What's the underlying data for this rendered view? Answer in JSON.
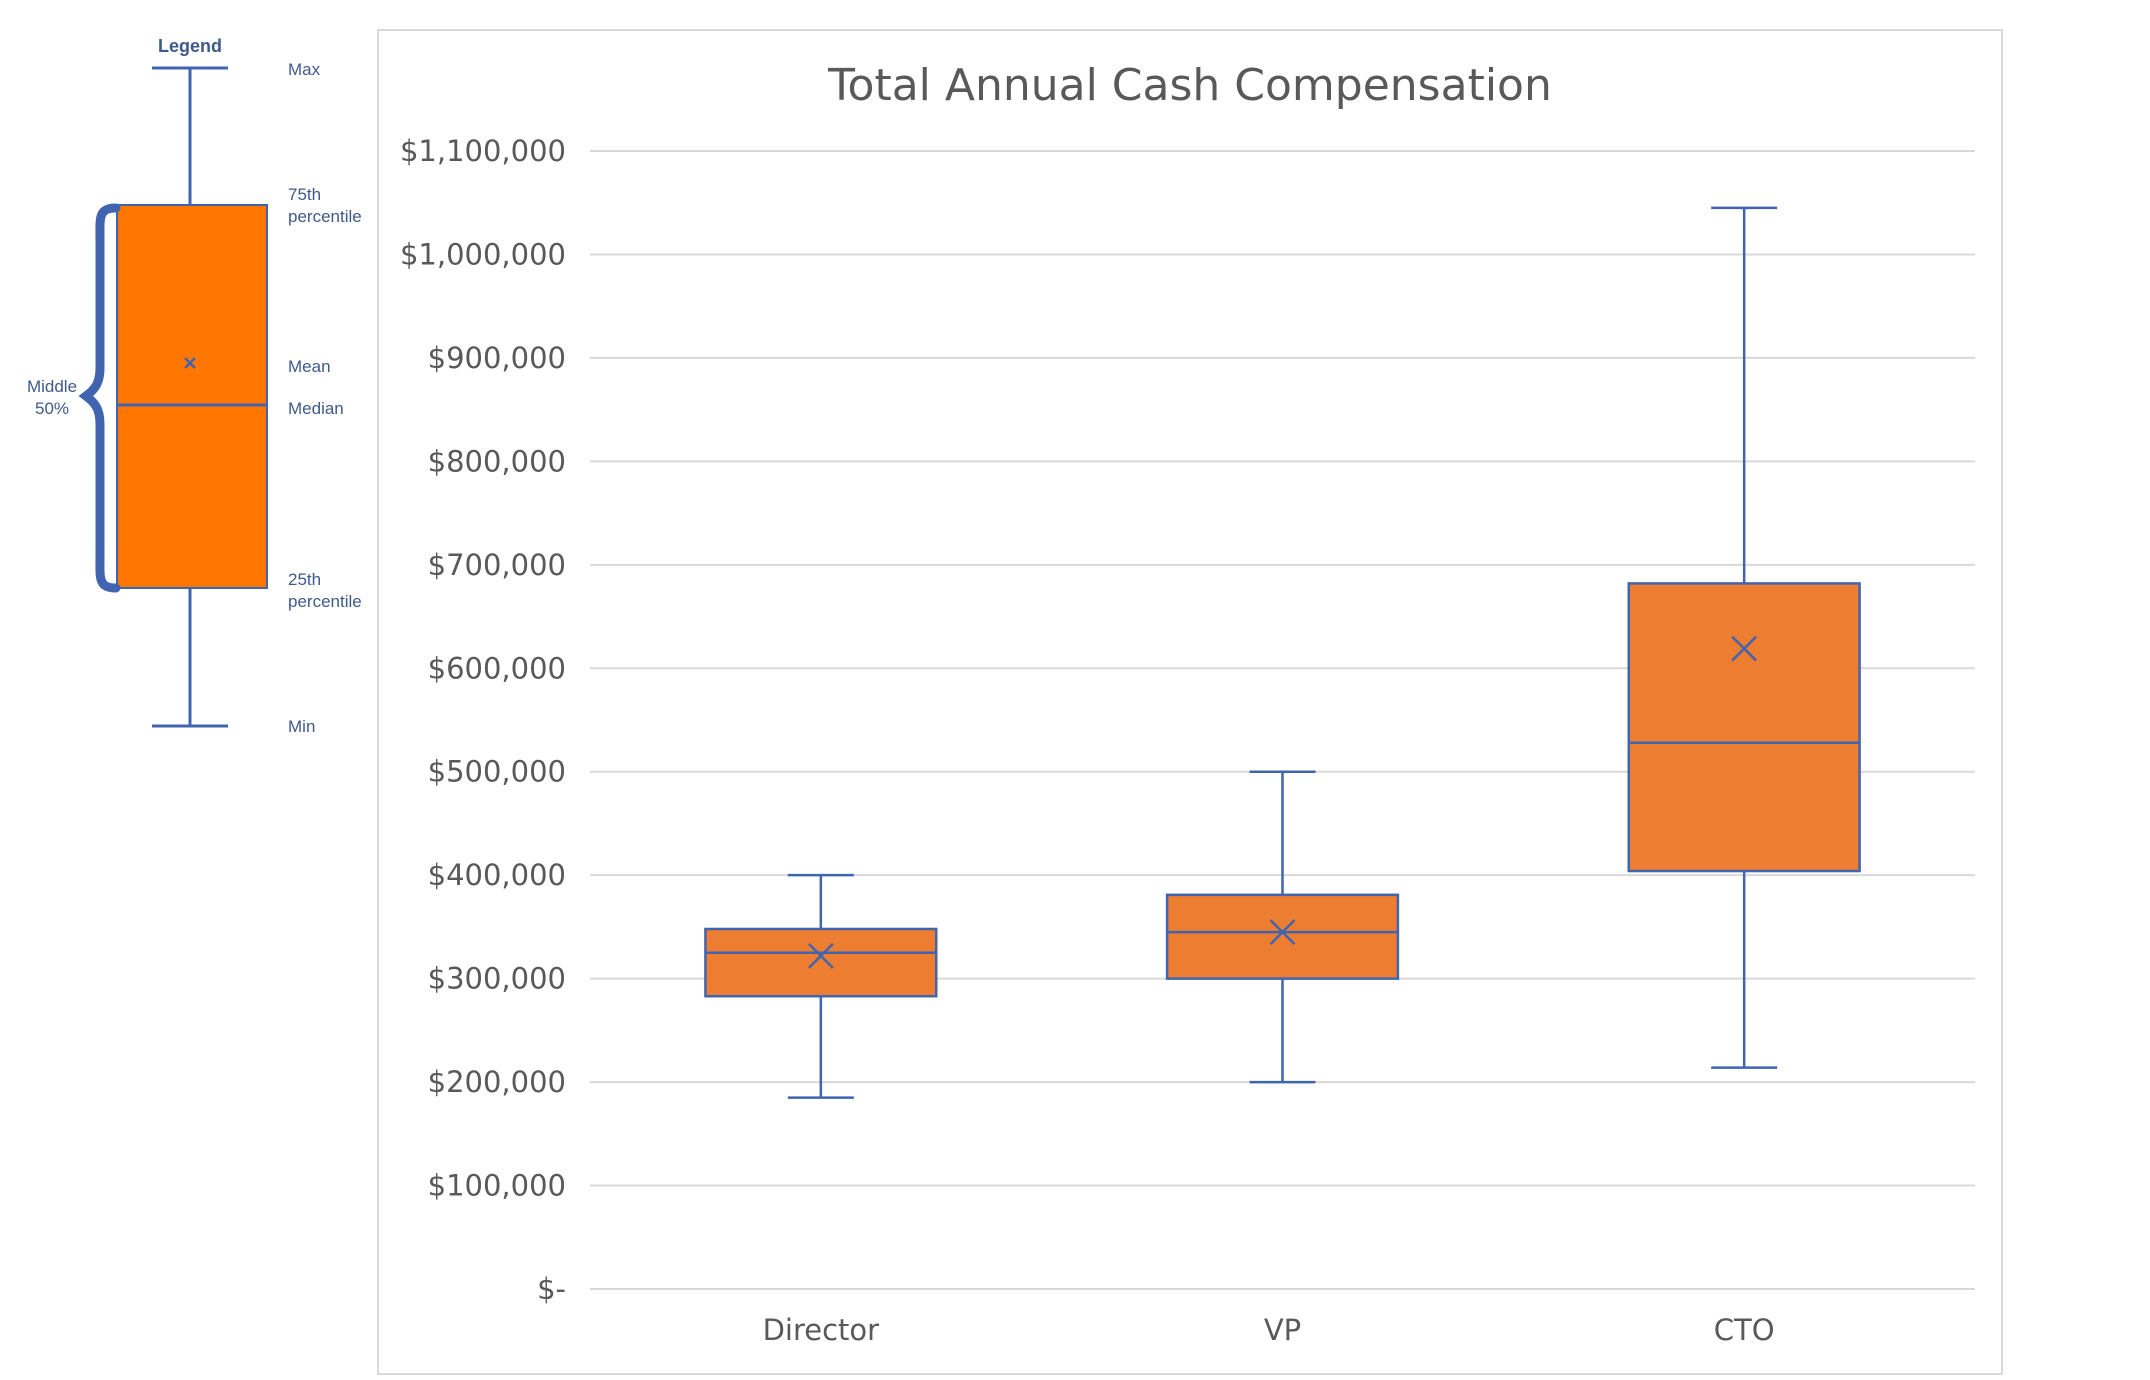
{
  "legend": {
    "title": "Legend",
    "max": "Max",
    "p75_line1": "75th",
    "p75_line2": "percentile",
    "mean": "Mean",
    "median": "Median",
    "p25_line1": "25th",
    "p25_line2": "percentile",
    "min": "Min",
    "middle_line1": "Middle",
    "middle_line2": "50%"
  },
  "colors": {
    "box_fill": "#ED7D31",
    "legend_box_fill": "#FF7700",
    "stroke": "#4164B0",
    "grid": "#D9D9D9",
    "text": "#595959"
  },
  "chart_data": {
    "type": "box",
    "title": "Total Annual Cash Compensation",
    "xlabel": "",
    "ylabel": "",
    "ylim": [
      0,
      1100000
    ],
    "yticks": [
      0,
      100000,
      200000,
      300000,
      400000,
      500000,
      600000,
      700000,
      800000,
      900000,
      1000000,
      1100000
    ],
    "ytick_labels": [
      "$-",
      "$100,000",
      "$200,000",
      "$300,000",
      "$400,000",
      "$500,000",
      "$600,000",
      "$700,000",
      "$800,000",
      "$900,000",
      "$1,000,000",
      "$1,100,000"
    ],
    "grid": true,
    "categories": [
      "Director",
      "VP",
      "CTO"
    ],
    "boxes": [
      {
        "category": "Director",
        "min": 185000,
        "q1": 283000,
        "median": 325000,
        "q3": 348000,
        "max": 400000,
        "mean": 322000
      },
      {
        "category": "VP",
        "min": 200000,
        "q1": 300000,
        "median": 345000,
        "q3": 381000,
        "max": 500000,
        "mean": 345000
      },
      {
        "category": "CTO",
        "min": 214000,
        "q1": 404000,
        "median": 528000,
        "q3": 682000,
        "max": 1045000,
        "mean": 619000
      }
    ]
  }
}
